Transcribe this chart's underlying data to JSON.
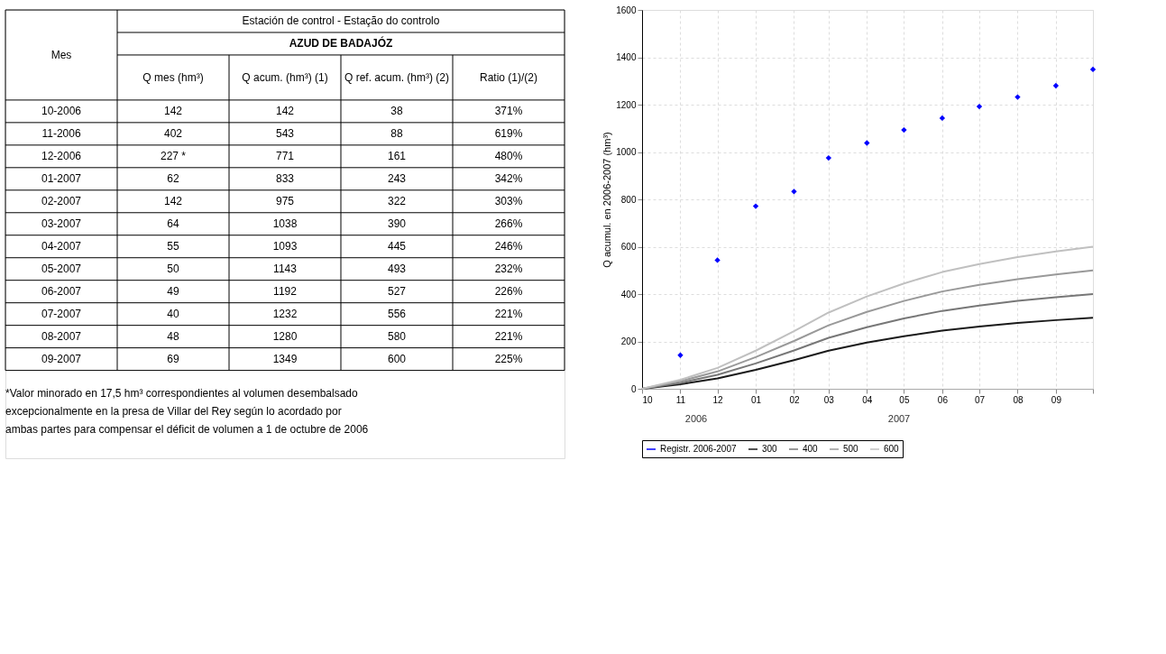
{
  "chart_data": [
    {
      "type": "other",
      "title": "Estación de control - Estação do controlo",
      "subtitle": "AZUD DE BADAJÓZ",
      "categories": [
        "Mes",
        "Q mes (hm³)",
        "Q acum. (hm³) (1)",
        "Q ref. acum. (hm³) (2)",
        "Ratio (1)/(2)"
      ],
      "cell_labels": [
        [
          "10-2006",
          "142",
          "142",
          "38",
          "371%"
        ],
        [
          "11-2006",
          "402",
          "543",
          "88",
          "619%"
        ],
        [
          "12-2006",
          "227 *",
          "771",
          "161",
          "480%"
        ],
        [
          "01-2007",
          "62",
          "833",
          "243",
          "342%"
        ],
        [
          "02-2007",
          "142",
          "975",
          "322",
          "303%"
        ],
        [
          "03-2007",
          "64",
          "1038",
          "390",
          "266%"
        ],
        [
          "04-2007",
          "55",
          "1093",
          "445",
          "246%"
        ],
        [
          "05-2007",
          "50",
          "1143",
          "493",
          "232%"
        ],
        [
          "06-2007",
          "49",
          "1192",
          "527",
          "226%"
        ],
        [
          "07-2007",
          "40",
          "1232",
          "556",
          "221%"
        ],
        [
          "08-2007",
          "48",
          "1280",
          "580",
          "221%"
        ],
        [
          "09-2007",
          "69",
          "1349",
          "600",
          "225%"
        ]
      ],
      "annotations": [
        "*Valor minorado en 17,5 hm³ correspondientes al volumen desembalsado excepcionalmente en la presa de Villar del Rey según lo acordado por ambas partes para compensar el déficit de volumen a 1 de octubre de 2006"
      ]
    },
    {
      "type": "line",
      "ylabel": "Q acumul. en 2006-2007 (hm³)",
      "series": [
        {
          "name": "Registr. 2006-2007",
          "type": "scatter",
          "color": "#0000ff",
          "marker": "diamond",
          "x": [
            "2006-11",
            "2006-12",
            "2007-01",
            "2007-02",
            "2007-03",
            "2007-04",
            "2007-05",
            "2007-06",
            "2007-07",
            "2007-08",
            "2007-09",
            "2007-10"
          ],
          "values": [
            142,
            543,
            771,
            833,
            975,
            1038,
            1093,
            1143,
            1192,
            1232,
            1280,
            1349
          ]
        },
        {
          "name": "300",
          "color": "#1a1a1a",
          "x": [
            "2006-10",
            "2006-11",
            "2006-12",
            "2007-01",
            "2007-02",
            "2007-03",
            "2007-04",
            "2007-05",
            "2007-06",
            "2007-07",
            "2007-08",
            "2007-09",
            "2007-10"
          ],
          "values": [
            0,
            19,
            44,
            80,
            121,
            161,
            195,
            222,
            246,
            263,
            278,
            290,
            300
          ]
        },
        {
          "name": "400",
          "color": "#777777",
          "x": [
            "2006-10",
            "2006-11",
            "2006-12",
            "2007-01",
            "2007-02",
            "2007-03",
            "2007-04",
            "2007-05",
            "2007-06",
            "2007-07",
            "2007-08",
            "2007-09",
            "2007-10"
          ],
          "values": [
            0,
            25,
            59,
            107,
            162,
            215,
            260,
            297,
            329,
            351,
            371,
            387,
            400
          ]
        },
        {
          "name": "500",
          "color": "#999999",
          "x": [
            "2006-10",
            "2006-11",
            "2006-12",
            "2007-01",
            "2007-02",
            "2007-03",
            "2007-04",
            "2007-05",
            "2007-06",
            "2007-07",
            "2007-08",
            "2007-09",
            "2007-10"
          ],
          "values": [
            0,
            32,
            73,
            134,
            202,
            268,
            325,
            371,
            411,
            439,
            463,
            483,
            500
          ]
        },
        {
          "name": "600",
          "color": "#c0c0c0",
          "x": [
            "2006-10",
            "2006-11",
            "2006-12",
            "2007-01",
            "2007-02",
            "2007-03",
            "2007-04",
            "2007-05",
            "2007-06",
            "2007-07",
            "2007-08",
            "2007-09",
            "2007-10"
          ],
          "values": [
            0,
            38,
            88,
            161,
            243,
            322,
            390,
            445,
            493,
            527,
            556,
            580,
            600
          ]
        }
      ],
      "xlim": [
        "2006-10",
        "2007-10"
      ],
      "xticks": [
        {
          "value": "2006-10",
          "label": "10"
        },
        {
          "value": "2006-11",
          "label": "11"
        },
        {
          "value": "2006-12",
          "label": "12"
        },
        {
          "value": "2007-01",
          "label": "01"
        },
        {
          "value": "2007-02",
          "label": "02"
        },
        {
          "value": "2007-03",
          "label": "03"
        },
        {
          "value": "2007-04",
          "label": "04"
        },
        {
          "value": "2007-05",
          "label": "05"
        },
        {
          "value": "2007-06",
          "label": "06"
        },
        {
          "value": "2007-07",
          "label": "07"
        },
        {
          "value": "2007-08",
          "label": "08"
        },
        {
          "value": "2007-09",
          "label": "09"
        },
        {
          "value": "2007-10",
          "label": null
        }
      ],
      "ylim": [
        0,
        1600
      ],
      "yticks": [
        0,
        200,
        400,
        600,
        800,
        1000,
        1200,
        1400,
        1600
      ],
      "grid": true,
      "legend": "bottom",
      "line_style": "solid",
      "annotations": [
        "2006",
        "2007"
      ]
    }
  ]
}
